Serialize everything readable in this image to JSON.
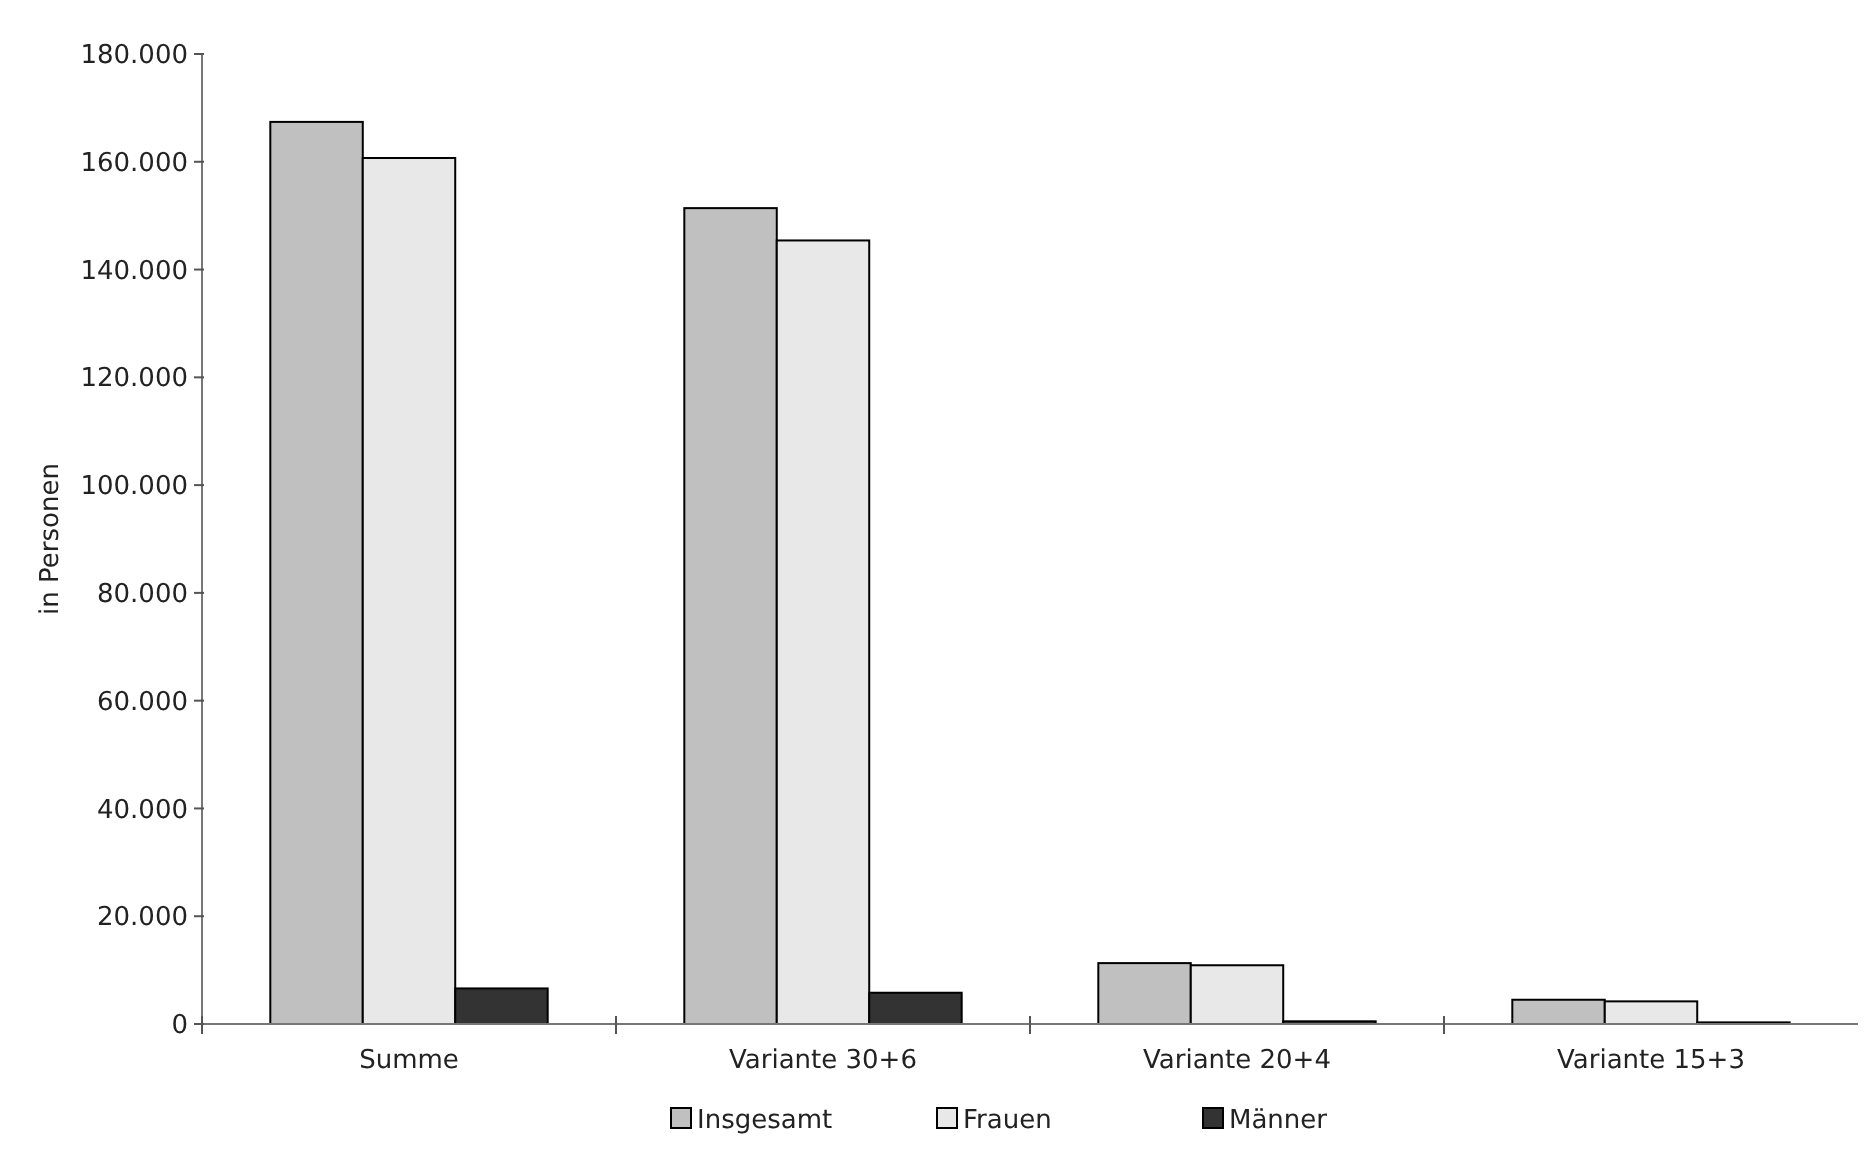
{
  "chart_data": {
    "type": "bar",
    "ylabel": "in Personen",
    "categories": [
      "Summe",
      "Variante 30+6",
      "Variante 20+4",
      "Variante 15+3"
    ],
    "series": [
      {
        "name": "Insgesamt",
        "color": "#c0c0c0",
        "values": [
          167400,
          151400,
          11300,
          4500
        ]
      },
      {
        "name": "Frauen",
        "color": "#e8e8e8",
        "values": [
          160700,
          145400,
          10900,
          4200
        ]
      },
      {
        "name": "Männer",
        "color": "#333333",
        "values": [
          6600,
          5800,
          500,
          300
        ]
      }
    ],
    "ylim": [
      0,
      180000
    ],
    "yticks": [
      {
        "value": 0,
        "label": "0"
      },
      {
        "value": 20000,
        "label": "20.000"
      },
      {
        "value": 40000,
        "label": "40.000"
      },
      {
        "value": 60000,
        "label": "60.000"
      },
      {
        "value": 80000,
        "label": "80.000"
      },
      {
        "value": 100000,
        "label": "100.000"
      },
      {
        "value": 120000,
        "label": "120.000"
      },
      {
        "value": 140000,
        "label": "140.000"
      },
      {
        "value": 160000,
        "label": "160.000"
      },
      {
        "value": 180000,
        "label": "180.000"
      }
    ],
    "grid": false,
    "legend": "bottom"
  }
}
